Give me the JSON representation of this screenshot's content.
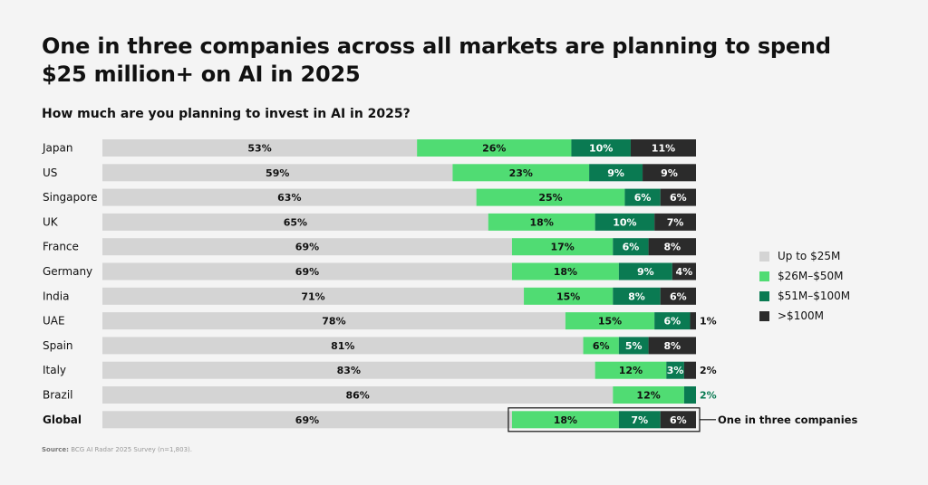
{
  "title": "One in three companies across all markets are planning to spend $25 million+ on AI in 2025",
  "subtitle": "How much are you planning to invest in AI in 2025?",
  "source_label": "Source:",
  "source_text": "BCG AI Radar 2025 Survey (n=1,803).",
  "annotation": "One in three companies",
  "colors": {
    "up_to_25m": "#d4d4d4",
    "26m_50m": "#50dc73",
    "51m_100m": "#0a7a52",
    "over_100m": "#2b2b2b",
    "outside_label_green": "#0a7a52"
  },
  "chart_data": {
    "type": "bar",
    "orientation": "horizontal",
    "stacked": true,
    "xlim": [
      0,
      100
    ],
    "categories": [
      "Japan",
      "US",
      "Singapore",
      "UK",
      "France",
      "Germany",
      "India",
      "UAE",
      "Spain",
      "Italy",
      "Brazil",
      "Global"
    ],
    "series": [
      {
        "name": "Up to $25M",
        "values": [
          53,
          59,
          63,
          65,
          69,
          69,
          71,
          78,
          81,
          83,
          86,
          69
        ],
        "labels": [
          "53%",
          "59%",
          "63%",
          "65%",
          "69%",
          "69%",
          "71%",
          "78%",
          "81%",
          "83%",
          "86%",
          "69%"
        ]
      },
      {
        "name": "$26M–$50M",
        "values": [
          26,
          23,
          25,
          18,
          17,
          18,
          15,
          15,
          6,
          12,
          12,
          18
        ],
        "labels": [
          "26%",
          "23%",
          "25%",
          "18%",
          "17%",
          "18%",
          "15%",
          "15%",
          "6%",
          "12%",
          "12%",
          "18%"
        ]
      },
      {
        "name": "$51M–$100M",
        "values": [
          10,
          9,
          6,
          10,
          6,
          9,
          8,
          6,
          5,
          3,
          2,
          7
        ],
        "labels": [
          "10%",
          "9%",
          "6%",
          "10%",
          "6%",
          "9%",
          "8%",
          "6%",
          "5%",
          "3%",
          "2%",
          "7%"
        ]
      },
      {
        "name": ">$100M",
        "values": [
          11,
          9,
          6,
          7,
          8,
          4,
          6,
          1,
          8,
          2,
          0,
          6
        ],
        "labels": [
          "11%",
          "9%",
          "6%",
          "7%",
          "8%",
          "4%",
          "6%",
          "1%",
          "8%",
          "2%",
          "",
          "6%"
        ]
      }
    ],
    "legend_position": "right",
    "highlight_category": "Global"
  }
}
